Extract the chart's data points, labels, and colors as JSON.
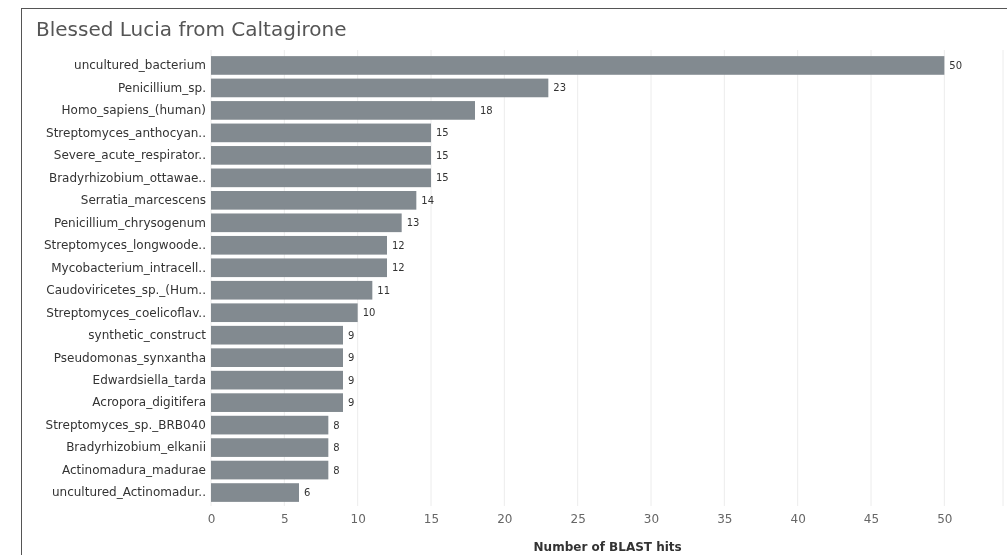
{
  "chart_data": {
    "type": "bar",
    "orientation": "horizontal",
    "title": "Blessed Lucia from Caltagirone",
    "xlabel": "Number of BLAST hits",
    "categories": [
      "uncultured_bacterium",
      "Penicillium_sp.",
      "Homo_sapiens_(human)",
      "Streptomyces_anthocyan..",
      "Severe_acute_respirator..",
      "Bradyrhizobium_ottawae..",
      "Serratia_marcescens",
      "Penicillium_chrysogenum",
      "Streptomyces_longwoode..",
      "Mycobacterium_intracell..",
      "Caudoviricetes_sp._(Hum..",
      "Streptomyces_coelicoflav..",
      "synthetic_construct",
      "Pseudomonas_synxantha",
      "Edwardsiella_tarda",
      "Acropora_digitifera",
      "Streptomyces_sp._BRB040",
      "Bradyrhizobium_elkanii",
      "Actinomadura_madurae",
      "uncultured_Actinomadur.."
    ],
    "values": [
      50,
      23,
      18,
      15,
      15,
      15,
      14,
      13,
      12,
      12,
      11,
      10,
      9,
      9,
      9,
      9,
      8,
      8,
      8,
      6
    ],
    "color": "#828a90",
    "xlim": [
      0,
      54
    ],
    "xticks": [
      0,
      5,
      10,
      15,
      20,
      25,
      30,
      35,
      40,
      45,
      50
    ],
    "grid": "x",
    "data_labels": true
  }
}
